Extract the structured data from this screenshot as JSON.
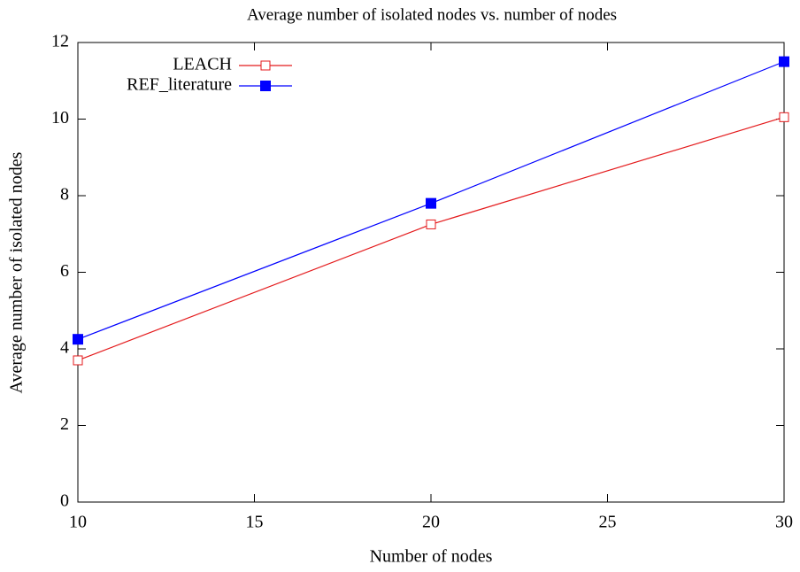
{
  "chart_data": {
    "type": "line",
    "title": "Average number of isolated nodes vs. number of nodes",
    "x_label": "Number of nodes",
    "y_label": "Average number of isolated nodes",
    "x": [
      10,
      20,
      30
    ],
    "series": [
      {
        "name": "LEACH",
        "color": "#e41a1c",
        "marker": "open-square",
        "values": [
          3.7,
          7.25,
          10.05
        ]
      },
      {
        "name": "REF_literature",
        "color": "#0000ff",
        "marker": "filled-square",
        "values": [
          4.25,
          7.8,
          11.5
        ]
      }
    ],
    "xlim": [
      10,
      30
    ],
    "xticks": [
      10,
      15,
      20,
      25,
      30
    ],
    "ylim": [
      0,
      12
    ],
    "yticks": [
      0,
      2,
      4,
      6,
      8,
      10,
      12
    ],
    "legend": "top-left"
  }
}
